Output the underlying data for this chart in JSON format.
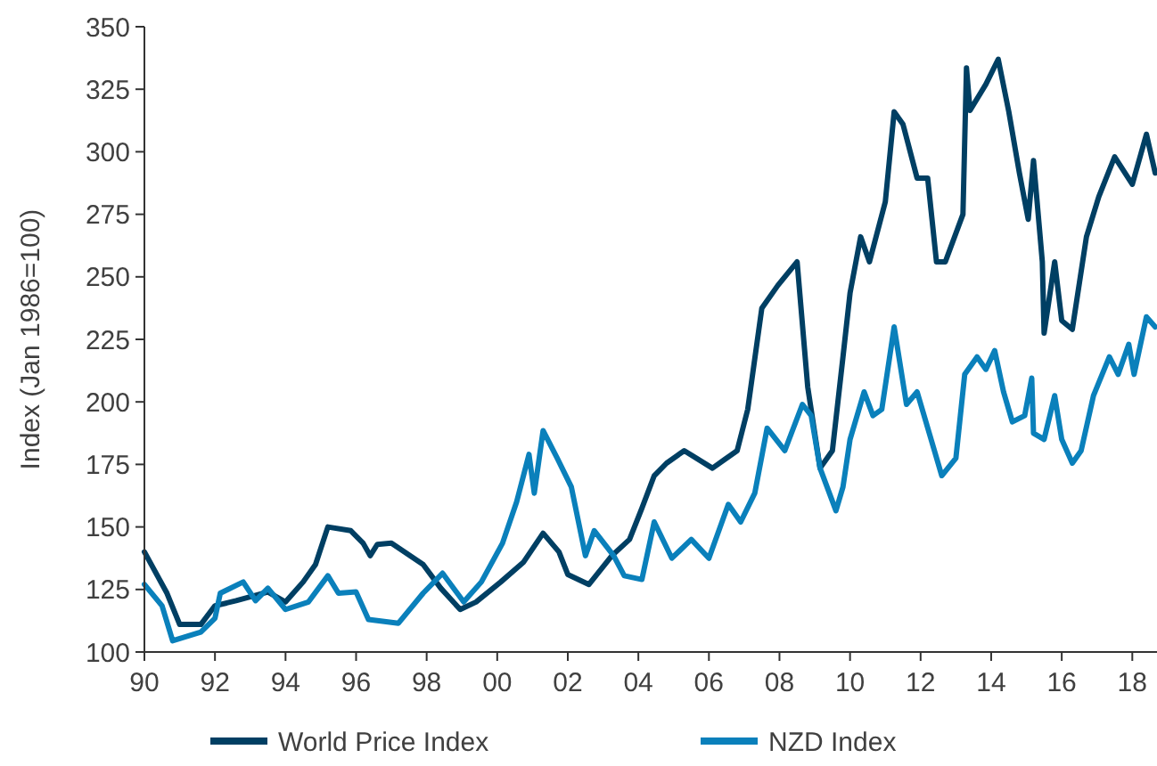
{
  "chart_data": {
    "type": "line",
    "ylabel": "Index (Jan 1986=100)",
    "xlim": [
      1990,
      2018.7
    ],
    "ylim": [
      100,
      350
    ],
    "xticks": [
      {
        "value": 1990,
        "label": "90"
      },
      {
        "value": 1992,
        "label": "92"
      },
      {
        "value": 1994,
        "label": "94"
      },
      {
        "value": 1996,
        "label": "96"
      },
      {
        "value": 1998,
        "label": "98"
      },
      {
        "value": 2000,
        "label": "00"
      },
      {
        "value": 2002,
        "label": "02"
      },
      {
        "value": 2004,
        "label": "04"
      },
      {
        "value": 2006,
        "label": "06"
      },
      {
        "value": 2008,
        "label": "08"
      },
      {
        "value": 2010,
        "label": "10"
      },
      {
        "value": 2012,
        "label": "12"
      },
      {
        "value": 2014,
        "label": "14"
      },
      {
        "value": 2016,
        "label": "16"
      },
      {
        "value": 2018,
        "label": "18"
      }
    ],
    "yticks": [
      100,
      125,
      150,
      175,
      200,
      225,
      250,
      275,
      300,
      325,
      350
    ],
    "grid": false,
    "legend": "bottom",
    "marker": "none",
    "line_style": "solid",
    "series": [
      {
        "name": "World Price Index",
        "color": "#003f63",
        "x": [
          1990,
          1990.64,
          1991,
          1991.6,
          1992,
          1992.6,
          1993.5,
          1994,
          1994.5,
          1994.85,
          1995.2,
          1995.85,
          1996.2,
          1996.4,
          1996.6,
          1997,
          1997.9,
          1998.4,
          1998.95,
          1999.4,
          2000.1,
          2000.75,
          2001.3,
          2001.75,
          2002,
          2002.6,
          2003.25,
          2003.75,
          2004.1,
          2004.45,
          2004.8,
          2005.3,
          2006.1,
          2006.45,
          2006.8,
          2007.1,
          2007.5,
          2007.95,
          2008.5,
          2008.8,
          2009.15,
          2009.5,
          2009.8,
          2010,
          2010.3,
          2010.55,
          2011,
          2011.25,
          2011.5,
          2011.9,
          2012.2,
          2012.45,
          2012.7,
          2013.2,
          2013.3,
          2013.4,
          2013.85,
          2014.2,
          2014.5,
          2014.8,
          2015.05,
          2015.2,
          2015.45,
          2015.5,
          2015.8,
          2016,
          2016.3,
          2016.7,
          2017.05,
          2017.5,
          2018,
          2018.4,
          2018.65
        ],
        "values": [
          140,
          123.5,
          111,
          111,
          118.5,
          120.5,
          124,
          120,
          128,
          135,
          150,
          148.5,
          143.5,
          138.5,
          143,
          143.5,
          135,
          125.5,
          117,
          120,
          128,
          136,
          147.5,
          140,
          131,
          127,
          138.5,
          145,
          157.5,
          170.5,
          175.5,
          180.5,
          173.5,
          177,
          180.5,
          197,
          237.5,
          246.5,
          256,
          206,
          173.5,
          180.5,
          218,
          243.5,
          266,
          256,
          280,
          316,
          311,
          289.5,
          289.5,
          256,
          256,
          275,
          333.5,
          316.5,
          327,
          337,
          316,
          291.5,
          273,
          296.5,
          256,
          227.5,
          256,
          232.5,
          229,
          266,
          282,
          298,
          287,
          307,
          291.5
        ]
      },
      {
        "name": "NZD Index",
        "color": "#0a80bb",
        "x": [
          1990,
          1990.5,
          1990.8,
          1991.6,
          1992,
          1992.15,
          1992.8,
          1993.15,
          1993.5,
          1994,
          1994.65,
          1995.2,
          1995.5,
          1996,
          1996.35,
          1997.2,
          1997.9,
          1998.45,
          1999.05,
          1999.55,
          2000.15,
          2000.55,
          2000.9,
          2001.05,
          2001.3,
          2001.7,
          2002.1,
          2002.5,
          2002.75,
          2003.3,
          2003.6,
          2004.1,
          2004.45,
          2004.95,
          2005.5,
          2006,
          2006.55,
          2006.9,
          2007.3,
          2007.65,
          2008.15,
          2008.65,
          2008.9,
          2009.15,
          2009.6,
          2009.8,
          2010,
          2010.4,
          2010.65,
          2010.9,
          2011.25,
          2011.6,
          2011.9,
          2012.6,
          2013,
          2013.25,
          2013.6,
          2013.85,
          2014.1,
          2014.35,
          2014.6,
          2014.95,
          2015.15,
          2015.2,
          2015.5,
          2015.8,
          2016,
          2016.3,
          2016.55,
          2016.9,
          2017.35,
          2017.6,
          2017.9,
          2018.05,
          2018.4,
          2018.65
        ],
        "values": [
          127,
          118.5,
          104.5,
          108,
          113.5,
          123.5,
          128,
          120.5,
          125.5,
          117,
          120,
          130.5,
          123.5,
          124,
          113,
          111.5,
          123.5,
          131.5,
          120,
          128,
          143.5,
          160,
          179,
          163.5,
          188.5,
          177.5,
          166,
          138.5,
          148.5,
          138.5,
          130.5,
          129,
          152,
          137.5,
          145,
          137.5,
          159,
          152,
          163.5,
          189.5,
          180.5,
          199,
          194.5,
          173.5,
          156.5,
          166,
          185,
          204,
          194.5,
          197,
          230,
          199,
          204,
          170.5,
          177.5,
          211,
          218,
          213,
          220.5,
          204,
          192,
          194.5,
          209.5,
          187.5,
          185,
          202.5,
          185,
          175.5,
          180.5,
          202.5,
          218,
          211,
          223,
          211,
          234,
          230
        ]
      }
    ]
  }
}
